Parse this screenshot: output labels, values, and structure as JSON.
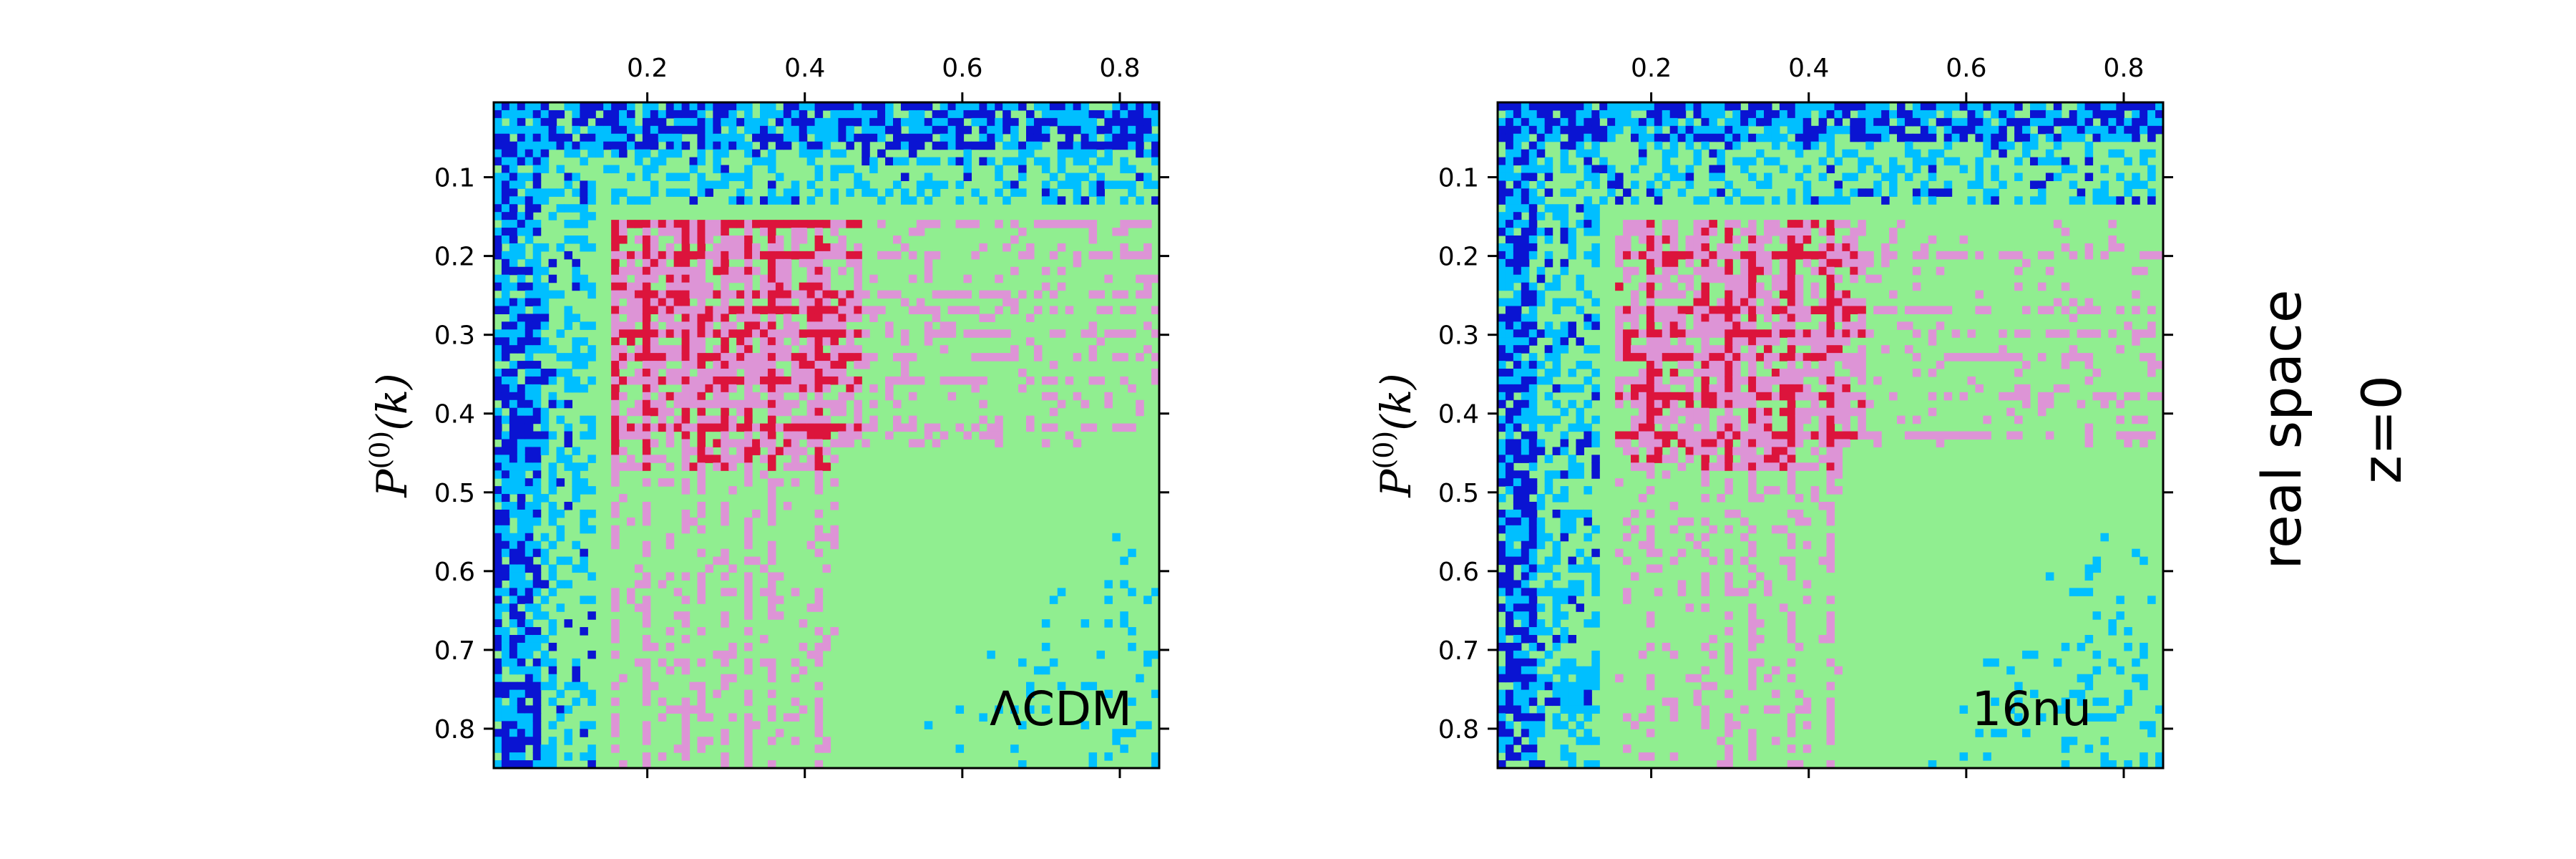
{
  "figure": {
    "side_label": {
      "line1": "real space",
      "line2": "z=0"
    }
  },
  "chart_data": [
    {
      "type": "heatmap",
      "title": "",
      "annotation": "ΛCDM",
      "ylabel": "P(0)(k)",
      "ylabel_parts": {
        "base": "P",
        "sup": "(0)",
        "arg": "(k)"
      },
      "x_axis_position": "top",
      "xlim": [
        0.005,
        0.85
      ],
      "ylim": [
        0.005,
        0.85
      ],
      "y_inverted": true,
      "xticks": [
        0.2,
        0.4,
        0.6,
        0.8
      ],
      "yticks": [
        0.1,
        0.2,
        0.3,
        0.4,
        0.5,
        0.6,
        0.7,
        0.8
      ],
      "xtick_labels": [
        "0.2",
        "0.4",
        "0.6",
        "0.8"
      ],
      "ytick_labels": [
        "0.1",
        "0.2",
        "0.3",
        "0.4",
        "0.5",
        "0.6",
        "0.7",
        "0.8"
      ],
      "grid_bins": 85,
      "colormap_levels": [
        "#0a14d2",
        "#00bfff",
        "#90ee90",
        "#dd94d6",
        "#dc143c"
      ],
      "structure": {
        "bright_lines_k": [
          0.16,
          0.2,
          0.245,
          0.27,
          0.3,
          0.33,
          0.36,
          0.42
        ],
        "pink_core_range": [
          0.15,
          0.44
        ],
        "dark_edge_band": [
          0.005,
          0.06
        ],
        "blue_corner_strength": 0.55
      }
    },
    {
      "type": "heatmap",
      "title": "",
      "annotation": "16nu",
      "ylabel": "P(0)(k)",
      "ylabel_parts": {
        "base": "P",
        "sup": "(0)",
        "arg": "(k)"
      },
      "x_axis_position": "top",
      "xlim": [
        0.005,
        0.85
      ],
      "ylim": [
        0.005,
        0.85
      ],
      "y_inverted": true,
      "xticks": [
        0.2,
        0.4,
        0.6,
        0.8
      ],
      "yticks": [
        0.1,
        0.2,
        0.3,
        0.4,
        0.5,
        0.6,
        0.7,
        0.8
      ],
      "xtick_labels": [
        "0.2",
        "0.4",
        "0.6",
        "0.8"
      ],
      "ytick_labels": [
        "0.1",
        "0.2",
        "0.3",
        "0.4",
        "0.5",
        "0.6",
        "0.7",
        "0.8"
      ],
      "grid_bins": 85,
      "colormap_levels": [
        "#0a14d2",
        "#00bfff",
        "#90ee90",
        "#dd94d6",
        "#dc143c"
      ],
      "structure": {
        "bright_lines_k": [
          0.2,
          0.27,
          0.3,
          0.33,
          0.38,
          0.43
        ],
        "pink_core_range": [
          0.15,
          0.44
        ],
        "dark_edge_band": [
          0.005,
          0.05
        ],
        "blue_corner_strength": 0.85
      }
    }
  ]
}
